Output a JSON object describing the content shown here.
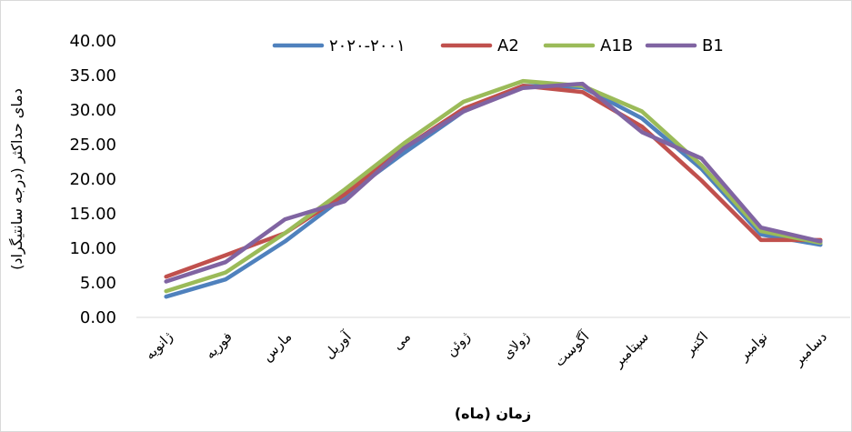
{
  "chart_data": {
    "type": "line",
    "title": "",
    "xlabel": "زمان (ماه)",
    "ylabel": "دمای حداکثر (درجه سانتیگراد)",
    "ylim": [
      0,
      40
    ],
    "yticks": [
      "0.00",
      "5.00",
      "10.00",
      "15.00",
      "20.00",
      "25.00",
      "30.00",
      "35.00",
      "40.00"
    ],
    "categories": [
      "ژانویه",
      "فوریه",
      "مارس",
      "آوریل",
      "می",
      "ژوئن",
      "ژولای",
      "آگوست",
      "سپتامبر",
      "اکتبر",
      "نوامبر",
      "دسامبر"
    ],
    "legend_position": "top",
    "grid": false,
    "series": [
      {
        "name": "۲۰۲۰-۲۰۰۱",
        "color": "#4f81bd",
        "values": [
          3.0,
          5.5,
          11.0,
          17.5,
          23.8,
          29.8,
          33.5,
          33.3,
          28.8,
          21.5,
          12.0,
          10.5
        ]
      },
      {
        "name": "A2",
        "color": "#c0504d",
        "values": [
          5.9,
          9.0,
          12.2,
          17.8,
          24.5,
          30.2,
          33.5,
          32.6,
          27.6,
          19.8,
          11.2,
          11.2
        ]
      },
      {
        "name": "A1B",
        "color": "#9bbb59",
        "values": [
          3.8,
          6.5,
          12.2,
          18.5,
          25.2,
          31.2,
          34.2,
          33.5,
          29.8,
          22.0,
          12.5,
          10.8
        ]
      },
      {
        "name": "B1",
        "color": "#8064a2",
        "values": [
          5.2,
          8.0,
          14.2,
          16.8,
          24.5,
          29.8,
          33.2,
          33.8,
          26.8,
          23.0,
          13.0,
          11.0
        ]
      }
    ]
  }
}
